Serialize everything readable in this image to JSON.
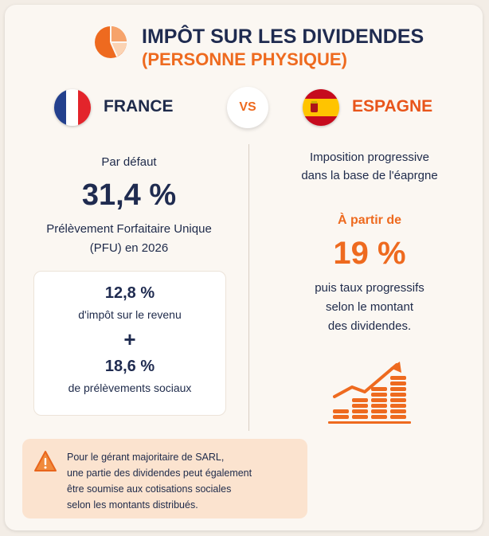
{
  "header": {
    "title_line1": "IMPÔT SUR LES DIVIDENDES",
    "title_line2": "(PERSONNE PHYSIQUE)",
    "icon": "pie-chart-icon"
  },
  "versus": "VS",
  "france": {
    "name": "FRANCE",
    "flag": "france-flag",
    "default_label": "Par défaut",
    "total_rate": "31,4 %",
    "pfu_line1": "Prélèvement Forfaitaire Unique",
    "pfu_line2": "(PFU) en 2026",
    "income_tax_rate": "12,8 %",
    "income_tax_label": "d'impôt sur le revenu",
    "plus": "+",
    "social_rate": "18,6 %",
    "social_label": "de prélèvements sociaux"
  },
  "spain": {
    "name": "ESPAGNE",
    "flag": "spain-flag",
    "desc_line1": "Imposition progressive",
    "desc_line2": "dans la base de l'éaprgne",
    "from_label": "À partir de",
    "rate": "19 %",
    "after_line1": "puis taux progressifs",
    "after_line2": "selon le montant",
    "after_line3": "des dividendes.",
    "icon": "growth-coins-icon"
  },
  "note": {
    "icon": "warning-icon",
    "lines": [
      "Pour le gérant majoritaire de SARL,",
      "une partie des dividendes peut également",
      "être soumise aux cotisations sociales",
      "selon les montants distribués."
    ]
  },
  "colors": {
    "accent": "#ee6a1f",
    "navy": "#1f2b50",
    "background": "#fbf7f2"
  }
}
